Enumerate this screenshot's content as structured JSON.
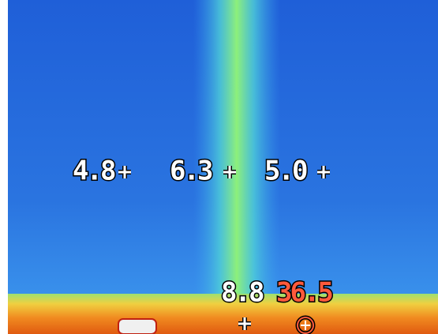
{
  "readings": [
    "4.8",
    "6.3",
    "5.0",
    "8.8",
    "36.5"
  ]
}
